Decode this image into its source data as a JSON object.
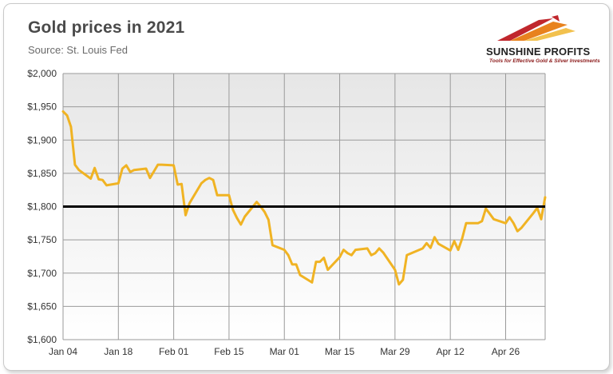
{
  "header": {
    "title": "Gold prices in 2021",
    "subtitle": "Source: St. Louis Fed"
  },
  "logo": {
    "name": "SUNSHINE PROFITS",
    "tagline": "Tools for Effective Gold & Silver Investments",
    "colors": [
      "#c0272d",
      "#e8821e",
      "#f2c14e"
    ]
  },
  "chart_data": {
    "type": "line",
    "title": "Gold prices in 2021",
    "subtitle": "Source: St. Louis Fed",
    "ylim": [
      1600,
      2000
    ],
    "y_ticks": [
      1600,
      1650,
      1700,
      1750,
      1800,
      1850,
      1900,
      1950,
      2000
    ],
    "y_tick_labels": [
      "$1,600",
      "$1,650",
      "$1,700",
      "$1,750",
      "$1,800",
      "$1,850",
      "$1,900",
      "$1,950",
      "$2,000"
    ],
    "x_ticks": [
      "Jan 04",
      "Jan 18",
      "Feb 01",
      "Feb 15",
      "Mar 01",
      "Mar 15",
      "Mar 29",
      "Apr 12",
      "Apr 26"
    ],
    "x_range": [
      "2021-01-04",
      "2021-05-06"
    ],
    "grid": true,
    "reference_line": {
      "value": 1800,
      "color": "#000000"
    },
    "series_color": "#f0b323",
    "series": [
      {
        "values": [
          {
            "x": "2021-01-04",
            "y": 1943
          },
          {
            "x": "2021-01-05",
            "y": 1937
          },
          {
            "x": "2021-01-06",
            "y": 1920
          },
          {
            "x": "2021-01-07",
            "y": 1863
          },
          {
            "x": "2021-01-08",
            "y": 1855
          },
          {
            "x": "2021-01-11",
            "y": 1842
          },
          {
            "x": "2021-01-12",
            "y": 1858
          },
          {
            "x": "2021-01-13",
            "y": 1841
          },
          {
            "x": "2021-01-14",
            "y": 1840
          },
          {
            "x": "2021-01-15",
            "y": 1832
          },
          {
            "x": "2021-01-18",
            "y": 1835
          },
          {
            "x": "2021-01-19",
            "y": 1857
          },
          {
            "x": "2021-01-20",
            "y": 1862
          },
          {
            "x": "2021-01-21",
            "y": 1852
          },
          {
            "x": "2021-01-22",
            "y": 1855
          },
          {
            "x": "2021-01-25",
            "y": 1857
          },
          {
            "x": "2021-01-26",
            "y": 1843
          },
          {
            "x": "2021-01-27",
            "y": 1853
          },
          {
            "x": "2021-01-28",
            "y": 1863
          },
          {
            "x": "2021-01-29",
            "y": 1863
          },
          {
            "x": "2021-02-01",
            "y": 1862
          },
          {
            "x": "2021-02-02",
            "y": 1833
          },
          {
            "x": "2021-02-03",
            "y": 1834
          },
          {
            "x": "2021-02-04",
            "y": 1787
          },
          {
            "x": "2021-02-05",
            "y": 1805
          },
          {
            "x": "2021-02-08",
            "y": 1835
          },
          {
            "x": "2021-02-09",
            "y": 1840
          },
          {
            "x": "2021-02-10",
            "y": 1843
          },
          {
            "x": "2021-02-11",
            "y": 1840
          },
          {
            "x": "2021-02-12",
            "y": 1817
          },
          {
            "x": "2021-02-15",
            "y": 1817
          },
          {
            "x": "2021-02-16",
            "y": 1795
          },
          {
            "x": "2021-02-17",
            "y": 1783
          },
          {
            "x": "2021-02-18",
            "y": 1773
          },
          {
            "x": "2021-02-19",
            "y": 1785
          },
          {
            "x": "2021-02-22",
            "y": 1807
          },
          {
            "x": "2021-02-23",
            "y": 1800
          },
          {
            "x": "2021-02-24",
            "y": 1792
          },
          {
            "x": "2021-02-25",
            "y": 1780
          },
          {
            "x": "2021-02-26",
            "y": 1742
          },
          {
            "x": "2021-03-01",
            "y": 1735
          },
          {
            "x": "2021-03-02",
            "y": 1727
          },
          {
            "x": "2021-03-03",
            "y": 1713
          },
          {
            "x": "2021-03-04",
            "y": 1713
          },
          {
            "x": "2021-03-05",
            "y": 1697
          },
          {
            "x": "2021-03-08",
            "y": 1686
          },
          {
            "x": "2021-03-09",
            "y": 1717
          },
          {
            "x": "2021-03-10",
            "y": 1717
          },
          {
            "x": "2021-03-11",
            "y": 1723
          },
          {
            "x": "2021-03-12",
            "y": 1705
          },
          {
            "x": "2021-03-15",
            "y": 1724
          },
          {
            "x": "2021-03-16",
            "y": 1735
          },
          {
            "x": "2021-03-17",
            "y": 1730
          },
          {
            "x": "2021-03-18",
            "y": 1727
          },
          {
            "x": "2021-03-19",
            "y": 1735
          },
          {
            "x": "2021-03-22",
            "y": 1737
          },
          {
            "x": "2021-03-23",
            "y": 1727
          },
          {
            "x": "2021-03-24",
            "y": 1730
          },
          {
            "x": "2021-03-25",
            "y": 1737
          },
          {
            "x": "2021-03-26",
            "y": 1731
          },
          {
            "x": "2021-03-29",
            "y": 1705
          },
          {
            "x": "2021-03-30",
            "y": 1683
          },
          {
            "x": "2021-03-31",
            "y": 1690
          },
          {
            "x": "2021-04-01",
            "y": 1727
          },
          {
            "x": "2021-04-05",
            "y": 1737
          },
          {
            "x": "2021-04-06",
            "y": 1745
          },
          {
            "x": "2021-04-07",
            "y": 1738
          },
          {
            "x": "2021-04-08",
            "y": 1754
          },
          {
            "x": "2021-04-09",
            "y": 1744
          },
          {
            "x": "2021-04-12",
            "y": 1734
          },
          {
            "x": "2021-04-13",
            "y": 1748
          },
          {
            "x": "2021-04-14",
            "y": 1735
          },
          {
            "x": "2021-04-15",
            "y": 1752
          },
          {
            "x": "2021-04-16",
            "y": 1775
          },
          {
            "x": "2021-04-19",
            "y": 1775
          },
          {
            "x": "2021-04-20",
            "y": 1778
          },
          {
            "x": "2021-04-21",
            "y": 1797
          },
          {
            "x": "2021-04-22",
            "y": 1789
          },
          {
            "x": "2021-04-23",
            "y": 1781
          },
          {
            "x": "2021-04-26",
            "y": 1775
          },
          {
            "x": "2021-04-27",
            "y": 1784
          },
          {
            "x": "2021-04-28",
            "y": 1775
          },
          {
            "x": "2021-04-29",
            "y": 1763
          },
          {
            "x": "2021-04-30",
            "y": 1768
          },
          {
            "x": "2021-05-03",
            "y": 1790
          },
          {
            "x": "2021-05-04",
            "y": 1798
          },
          {
            "x": "2021-05-05",
            "y": 1781
          },
          {
            "x": "2021-05-06",
            "y": 1814
          }
        ]
      }
    ]
  }
}
